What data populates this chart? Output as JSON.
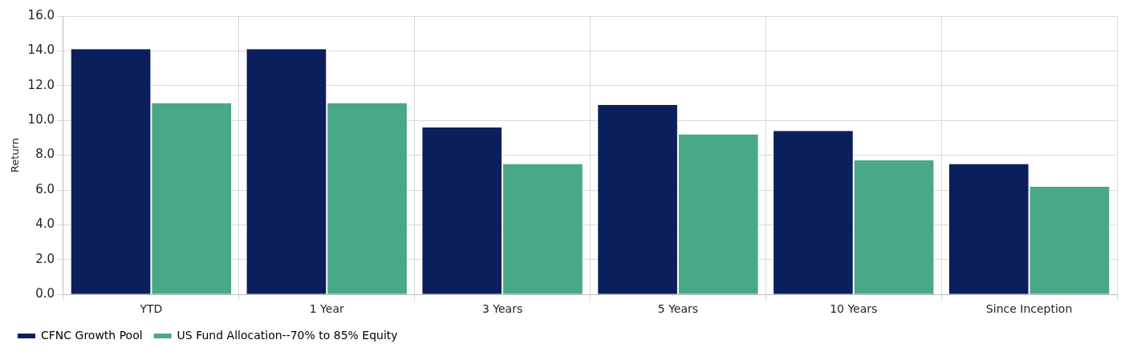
{
  "chart_data": {
    "type": "bar",
    "ylabel": "Return",
    "categories": [
      "YTD",
      "1 Year",
      "3 Years",
      "5 Years",
      "10 Years",
      "Since Inception"
    ],
    "series": [
      {
        "name": "CFNC Growth Pool",
        "color": "#0b1f5c",
        "values": [
          14.1,
          14.1,
          9.6,
          10.9,
          9.4,
          7.5
        ]
      },
      {
        "name": "US Fund Allocation--70% to 85% Equity",
        "color": "#48a888",
        "values": [
          11.0,
          11.0,
          7.5,
          9.2,
          7.7,
          6.2
        ]
      }
    ],
    "ylim": [
      0,
      16
    ],
    "yticks": [
      {
        "value": 0,
        "label": "0.0"
      },
      {
        "value": 2,
        "label": "2.0"
      },
      {
        "value": 4,
        "label": "4.0"
      },
      {
        "value": 6,
        "label": "6.0"
      },
      {
        "value": 8,
        "label": "8.0"
      },
      {
        "value": 10,
        "label": "10.0"
      },
      {
        "value": 12,
        "label": "12.0"
      },
      {
        "value": 14,
        "label": "14.0"
      },
      {
        "value": 16,
        "label": "16.0"
      }
    ],
    "grid": true,
    "legend": "bottom left"
  }
}
